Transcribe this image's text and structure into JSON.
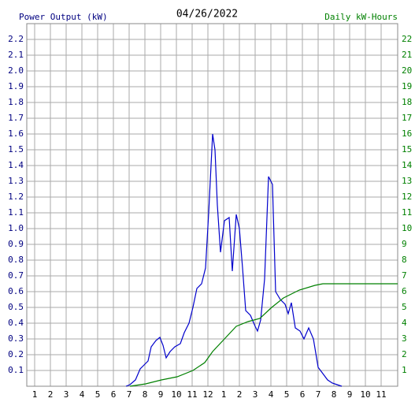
{
  "chart_data": {
    "type": "line",
    "title": "04/26/2022",
    "y_label": "Power Output (kW)",
    "y2_label": "Daily kW-Hours",
    "y_label_color": "#000080",
    "y2_label_color": "#008000",
    "xlim": [
      0.5,
      24.05
    ],
    "xticks": [
      1,
      2,
      3,
      4,
      5,
      6,
      7,
      8,
      9,
      10,
      11,
      12,
      {
        "value": 13,
        "label": "1"
      },
      {
        "value": 14,
        "label": "2"
      },
      {
        "value": 15,
        "label": "3"
      },
      {
        "value": 16,
        "label": "4"
      },
      {
        "value": 17,
        "label": "5"
      },
      {
        "value": 18,
        "label": "6"
      },
      {
        "value": 19,
        "label": "7"
      },
      {
        "value": 20,
        "label": "8"
      },
      {
        "value": 21,
        "label": "9"
      },
      {
        "value": 22,
        "label": "10"
      },
      {
        "value": 23,
        "label": "11"
      }
    ],
    "ylim": [
      0,
      2.3
    ],
    "yticks": [
      0.1,
      0.2,
      0.3,
      0.4,
      0.5,
      0.6,
      0.7,
      0.8,
      0.9,
      {
        "value": 1,
        "label": "1.0"
      },
      1.1,
      1.2,
      1.3,
      1.4,
      1.5,
      1.6,
      1.7,
      1.8,
      1.9,
      {
        "value": 2,
        "label": "2.0"
      },
      2.1,
      2.2
    ],
    "y2lim": [
      0,
      23
    ],
    "y2ticks": [
      1,
      2,
      3,
      4,
      5,
      6,
      7,
      8,
      9,
      10,
      11,
      12,
      13,
      14,
      15,
      16,
      17,
      18,
      19,
      20,
      21,
      22
    ],
    "grid": true,
    "series": [
      {
        "name": "Power Output (kW)",
        "color": "#0000cc",
        "x": [
          6.8,
          7.05,
          7.4,
          7.7,
          7.9,
          8.2,
          8.4,
          8.7,
          8.95,
          9.15,
          9.35,
          9.6,
          9.9,
          10.25,
          10.5,
          10.8,
          11.05,
          11.3,
          11.6,
          11.85,
          12.05,
          12.3,
          12.45,
          12.6,
          12.8,
          13.05,
          13.35,
          13.55,
          13.8,
          14.0,
          14.2,
          14.4,
          14.7,
          15.0,
          15.15,
          15.35,
          15.6,
          15.85,
          16.1,
          16.3,
          16.6,
          16.9,
          17.1,
          17.3,
          17.55,
          17.85,
          18.1,
          18.4,
          18.7,
          19.0,
          19.3,
          19.6,
          19.9,
          20.2,
          20.5
        ],
        "values": [
          0,
          0.01,
          0.04,
          0.11,
          0.13,
          0.16,
          0.25,
          0.29,
          0.31,
          0.26,
          0.18,
          0.22,
          0.25,
          0.27,
          0.34,
          0.4,
          0.5,
          0.62,
          0.65,
          0.75,
          1.1,
          1.6,
          1.5,
          1.15,
          0.85,
          1.05,
          1.07,
          0.73,
          1.09,
          1.0,
          0.75,
          0.48,
          0.45,
          0.38,
          0.35,
          0.42,
          0.68,
          1.33,
          1.28,
          0.6,
          0.55,
          0.52,
          0.46,
          0.53,
          0.37,
          0.35,
          0.3,
          0.37,
          0.3,
          0.12,
          0.08,
          0.04,
          0.02,
          0.01,
          0
        ]
      },
      {
        "name": "Daily kW-Hours",
        "color": "#008000",
        "axis": "y2",
        "x": [
          7.05,
          8.05,
          9.05,
          10.05,
          11.05,
          11.8,
          12.3,
          13.05,
          13.8,
          14.55,
          15.3,
          16.05,
          16.8,
          17.8,
          18.8,
          19.3,
          20.3,
          24.05
        ],
        "values": [
          0,
          0.15,
          0.4,
          0.6,
          1.0,
          1.5,
          2.2,
          3.0,
          3.8,
          4.1,
          4.3,
          5.0,
          5.6,
          6.1,
          6.4,
          6.5,
          6.5,
          6.5
        ]
      }
    ]
  }
}
